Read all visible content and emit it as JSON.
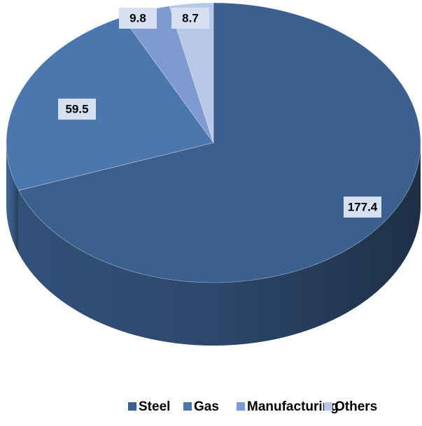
{
  "chart_data": {
    "type": "pie",
    "categories": [
      "Steel",
      "Gas",
      "Manufacturing",
      "Others"
    ],
    "values": [
      177.4,
      59.5,
      9.8,
      8.7
    ],
    "colors": [
      "#3b5f8e",
      "#4a77ae",
      "#7f9ad0",
      "#b9c8e7"
    ],
    "legend": "bottom"
  }
}
